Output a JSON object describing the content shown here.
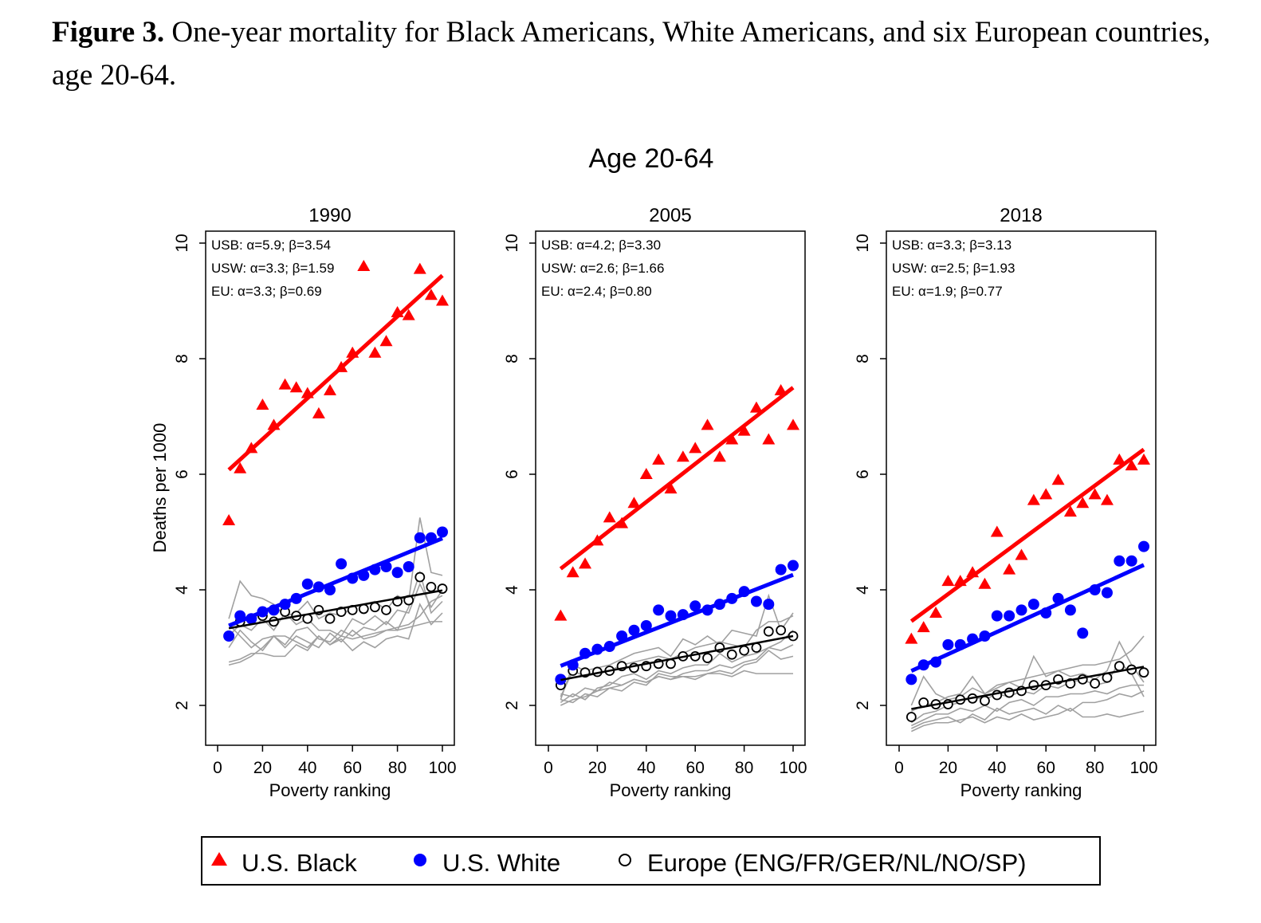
{
  "caption": {
    "label": "Figure 3.",
    "text": " One-year mortality for Black Americans, White Americans, and six European countries, age 20-64."
  },
  "chart_data": {
    "type": "scatter",
    "title": "Age 20-64",
    "ylabel": "Deaths per 1000",
    "xlabel": "Poverty ranking",
    "xlim": [
      0,
      100
    ],
    "ylim": [
      1.3,
      10.2
    ],
    "xticks": [
      "0",
      "20",
      "40",
      "60",
      "80",
      "100"
    ],
    "yticks": [
      "2",
      "4",
      "6",
      "8",
      "10"
    ],
    "grid": false,
    "legend_position": "bottom",
    "legend": [
      {
        "name": "U.S. Black",
        "marker": "triangle",
        "color": "#ff0000"
      },
      {
        "name": "U.S. White",
        "marker": "filled-circle",
        "color": "#0000ff"
      },
      {
        "name": "Europe (ENG/FR/GER/NL/NO/SP)",
        "marker": "hollow-circle",
        "color": "#000000"
      }
    ],
    "gray_line_color": "#a0a0a0",
    "x": [
      5,
      10,
      15,
      20,
      25,
      30,
      35,
      40,
      45,
      50,
      55,
      60,
      65,
      70,
      75,
      80,
      85,
      90,
      95,
      100
    ],
    "panels": [
      {
        "title": "1990",
        "annotations": [
          "USB: α=5.9; β=3.54",
          "USW: α=3.3; β=1.59",
          "EU:  α=3.3; β=0.69"
        ],
        "fits": {
          "usb": {
            "alpha": 5.9,
            "beta": 3.54
          },
          "usw": {
            "alpha": 3.3,
            "beta": 1.59
          },
          "eu": {
            "alpha": 3.3,
            "beta": 0.69
          }
        },
        "usb": [
          5.2,
          6.1,
          6.45,
          7.2,
          6.85,
          7.55,
          7.5,
          7.4,
          7.05,
          7.45,
          7.85,
          8.1,
          9.6,
          8.1,
          8.3,
          8.8,
          8.75,
          9.55,
          9.1,
          9.0
        ],
        "usw": [
          3.2,
          3.55,
          3.5,
          3.62,
          3.65,
          3.75,
          3.85,
          4.1,
          4.05,
          4.0,
          4.45,
          4.2,
          4.25,
          4.35,
          4.4,
          4.3,
          4.4,
          4.9,
          4.9,
          5.0
        ],
        "eu": [
          3.2,
          3.45,
          3.5,
          3.55,
          3.45,
          3.62,
          3.55,
          3.5,
          3.65,
          3.5,
          3.62,
          3.65,
          3.67,
          3.7,
          3.65,
          3.8,
          3.82,
          4.22,
          4.05,
          4.02
        ],
        "countries": [
          [
            3.5,
            4.15,
            3.9,
            3.85,
            3.75,
            3.55,
            3.6,
            3.8,
            3.5,
            3.6,
            3.55,
            3.7,
            3.75,
            3.8,
            3.65,
            3.9,
            3.8,
            5.25,
            4.3,
            4.25
          ],
          [
            3.2,
            3.4,
            3.3,
            3.5,
            3.3,
            3.6,
            3.4,
            3.5,
            3.3,
            3.3,
            3.2,
            3.5,
            3.4,
            3.55,
            3.4,
            3.65,
            3.6,
            4.1,
            3.7,
            4.0
          ],
          [
            3.0,
            3.3,
            3.1,
            2.95,
            3.2,
            3.05,
            3.3,
            3.35,
            3.15,
            3.1,
            3.3,
            3.2,
            3.35,
            3.3,
            3.45,
            3.3,
            3.7,
            4.3,
            3.6,
            3.8
          ],
          [
            2.7,
            2.75,
            2.85,
            3.0,
            3.2,
            3.0,
            3.2,
            3.1,
            3.0,
            3.25,
            3.1,
            3.3,
            3.15,
            3.2,
            3.3,
            3.35,
            3.4,
            3.55,
            3.8,
            3.9
          ],
          [
            2.75,
            2.8,
            2.9,
            2.9,
            2.85,
            2.85,
            3.05,
            2.95,
            3.2,
            3.05,
            3.15,
            2.95,
            3.1,
            3.0,
            3.15,
            3.2,
            3.15,
            3.75,
            3.4,
            3.6
          ],
          [
            3.4,
            3.2,
            3.0,
            3.15,
            3.2,
            3.2,
            3.1,
            3.0,
            3.2,
            3.05,
            3.2,
            3.15,
            3.2,
            3.25,
            3.3,
            3.3,
            3.35,
            3.4,
            3.45,
            3.45
          ]
        ]
      },
      {
        "title": "2005",
        "annotations": [
          "USB: α=4.2; β=3.30",
          "USW: α=2.6; β=1.66",
          "EU:  α=2.4; β=0.80"
        ],
        "fits": {
          "usb": {
            "alpha": 4.2,
            "beta": 3.3
          },
          "usw": {
            "alpha": 2.6,
            "beta": 1.66
          },
          "eu": {
            "alpha": 2.4,
            "beta": 0.8
          }
        },
        "usb": [
          3.55,
          4.3,
          4.45,
          4.85,
          5.25,
          5.15,
          5.5,
          6.0,
          6.25,
          5.75,
          6.3,
          6.45,
          6.85,
          6.3,
          6.6,
          6.75,
          7.15,
          6.6,
          7.45,
          6.85
        ],
        "usw": [
          2.45,
          2.7,
          2.9,
          2.97,
          3.02,
          3.2,
          3.3,
          3.38,
          3.65,
          3.55,
          3.57,
          3.72,
          3.65,
          3.75,
          3.85,
          3.97,
          3.8,
          3.75,
          4.35,
          4.42
        ],
        "eu": [
          2.35,
          2.6,
          2.57,
          2.58,
          2.6,
          2.68,
          2.65,
          2.68,
          2.72,
          2.72,
          2.85,
          2.85,
          2.82,
          3.0,
          2.88,
          2.95,
          3.0,
          3.28,
          3.3,
          3.2
        ],
        "countries": [
          [
            2.1,
            2.7,
            2.6,
            2.65,
            2.7,
            2.8,
            2.9,
            2.95,
            3.0,
            2.85,
            3.15,
            3.05,
            3.2,
            3.05,
            3.3,
            3.25,
            3.2,
            3.9,
            3.3,
            3.6
          ],
          [
            2.15,
            2.6,
            2.5,
            2.55,
            2.6,
            2.7,
            2.75,
            2.8,
            2.85,
            2.8,
            2.9,
            3.0,
            3.05,
            3.1,
            3.05,
            3.0,
            3.3,
            3.45,
            3.45,
            3.55
          ],
          [
            2.05,
            2.2,
            2.1,
            2.3,
            2.35,
            2.5,
            2.55,
            2.45,
            2.6,
            2.55,
            2.65,
            2.7,
            2.7,
            2.9,
            2.75,
            2.85,
            2.9,
            3.0,
            3.1,
            3.3
          ],
          [
            2.0,
            2.1,
            2.15,
            2.25,
            2.3,
            2.35,
            2.45,
            2.4,
            2.5,
            2.45,
            2.55,
            2.6,
            2.6,
            2.7,
            2.65,
            2.75,
            2.8,
            3.0,
            2.95,
            3.05
          ],
          [
            2.1,
            2.05,
            2.2,
            2.15,
            2.3,
            2.25,
            2.4,
            2.35,
            2.55,
            2.5,
            2.5,
            2.45,
            2.55,
            2.6,
            2.55,
            2.7,
            2.75,
            2.95,
            2.8,
            2.85
          ],
          [
            2.2,
            2.15,
            2.3,
            2.25,
            2.4,
            2.35,
            2.45,
            2.4,
            2.5,
            2.45,
            2.5,
            2.5,
            2.55,
            2.55,
            2.5,
            2.6,
            2.55,
            2.55,
            2.55,
            2.55
          ]
        ]
      },
      {
        "title": "2018",
        "annotations": [
          "USB: α=3.3; β=3.13",
          "USW: α=2.5; β=1.93",
          "EU:  α=1.9; β=0.77"
        ],
        "fits": {
          "usb": {
            "alpha": 3.3,
            "beta": 3.13
          },
          "usw": {
            "alpha": 2.5,
            "beta": 1.93
          },
          "eu": {
            "alpha": 1.9,
            "beta": 0.77
          }
        },
        "usb": [
          3.15,
          3.35,
          3.6,
          4.15,
          4.15,
          4.3,
          4.1,
          5.0,
          4.35,
          4.6,
          5.55,
          5.65,
          5.9,
          5.35,
          5.5,
          5.65,
          5.55,
          6.25,
          6.15,
          6.25
        ],
        "usw": [
          2.45,
          2.7,
          2.75,
          3.05,
          3.05,
          3.15,
          3.2,
          3.55,
          3.55,
          3.65,
          3.75,
          3.6,
          3.85,
          3.65,
          3.25,
          4.0,
          3.95,
          4.5,
          4.5,
          4.75
        ],
        "eu": [
          1.8,
          2.05,
          2.02,
          2.02,
          2.1,
          2.12,
          2.08,
          2.18,
          2.22,
          2.25,
          2.35,
          2.35,
          2.45,
          2.38,
          2.45,
          2.38,
          2.48,
          2.68,
          2.62,
          2.57
        ],
        "countries": [
          [
            2.0,
            2.5,
            2.2,
            2.1,
            2.15,
            2.3,
            2.2,
            2.3,
            2.4,
            2.3,
            2.85,
            2.5,
            2.6,
            2.5,
            2.55,
            2.45,
            2.6,
            3.1,
            2.7,
            2.4
          ],
          [
            1.9,
            2.0,
            2.05,
            2.15,
            2.2,
            2.5,
            2.2,
            2.35,
            2.4,
            2.45,
            2.5,
            2.55,
            2.6,
            2.65,
            2.7,
            2.7,
            2.75,
            2.8,
            2.95,
            3.2
          ],
          [
            1.7,
            1.85,
            1.9,
            2.0,
            2.05,
            2.15,
            2.1,
            2.2,
            2.15,
            2.25,
            2.2,
            2.35,
            2.3,
            2.4,
            2.45,
            2.35,
            2.4,
            2.75,
            2.55,
            2.15
          ],
          [
            1.65,
            1.75,
            1.85,
            1.85,
            1.95,
            1.9,
            2.0,
            1.9,
            2.05,
            2.1,
            2.0,
            2.15,
            2.15,
            2.2,
            2.2,
            2.25,
            2.2,
            2.3,
            2.35,
            2.35
          ],
          [
            1.6,
            1.7,
            1.75,
            1.8,
            1.7,
            1.85,
            1.75,
            1.95,
            1.85,
            1.9,
            1.95,
            1.85,
            2.0,
            1.9,
            2.05,
            2.05,
            2.1,
            2.2,
            2.15,
            2.25
          ],
          [
            1.55,
            1.65,
            1.7,
            1.7,
            1.75,
            1.8,
            1.7,
            1.8,
            1.75,
            1.85,
            1.75,
            1.8,
            1.85,
            1.95,
            1.8,
            1.8,
            1.85,
            1.8,
            1.85,
            1.9
          ]
        ]
      }
    ]
  }
}
